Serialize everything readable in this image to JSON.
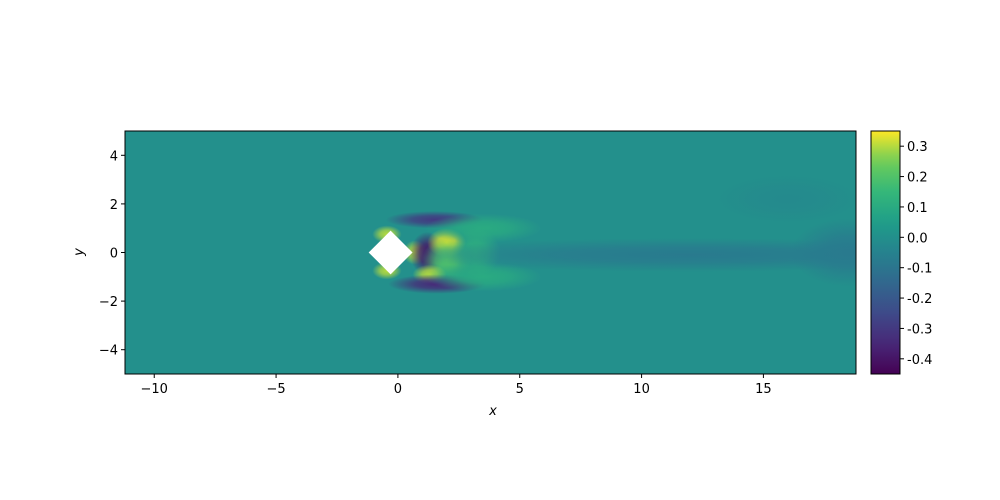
{
  "chart_data": {
    "type": "heatmap",
    "title": "",
    "xlabel": "x",
    "ylabel": "y",
    "xlim": [
      -11.2,
      18.8
    ],
    "ylim": [
      -5,
      5
    ],
    "x_ticks": [
      -10,
      -5,
      0,
      5,
      10,
      15
    ],
    "x_tick_labels": [
      "−10",
      "−5",
      "0",
      "5",
      "10",
      "15"
    ],
    "y_ticks": [
      -4,
      -2,
      0,
      2,
      4
    ],
    "y_tick_labels": [
      "−4",
      "−2",
      "0",
      "2",
      "4"
    ],
    "colormap": "viridis",
    "colorbar": {
      "vmin": -0.45,
      "vmax": 0.35,
      "ticks": [
        0.3,
        0.2,
        0.1,
        0.0,
        -0.1,
        -0.2,
        -0.3,
        -0.4
      ],
      "tick_labels": [
        "0.3",
        "0.2",
        "0.1",
        "0.0",
        "-0.1",
        "-0.2",
        "-0.3",
        "-0.4"
      ],
      "placement": "right"
    },
    "background_value": 0.0,
    "obstacle": {
      "shape": "diamond",
      "center": [
        -0.3,
        0
      ],
      "half_diagonal": 0.9
    },
    "features": [
      {
        "cx": -0.45,
        "cy": 0.75,
        "sx": 0.3,
        "sy": 0.18,
        "value": 0.3
      },
      {
        "cx": -0.45,
        "cy": -0.75,
        "sx": 0.3,
        "sy": 0.18,
        "value": 0.3
      },
      {
        "cx": 0.7,
        "cy": 0.0,
        "sx": 0.25,
        "sy": 0.25,
        "value": 0.3
      },
      {
        "cx": 1.2,
        "cy": -0.05,
        "sx": 0.35,
        "sy": 0.45,
        "value": -0.4
      },
      {
        "cx": 2.0,
        "cy": 0.4,
        "sx": 0.4,
        "sy": 0.3,
        "value": 0.33
      },
      {
        "cx": 2.0,
        "cy": -0.3,
        "sx": 0.5,
        "sy": 0.45,
        "value": 0.2
      },
      {
        "cx": 1.3,
        "cy": -0.9,
        "sx": 0.35,
        "sy": 0.2,
        "value": 0.3
      },
      {
        "cx": 1.5,
        "cy": 1.35,
        "sx": 1.0,
        "sy": 0.18,
        "value": -0.3
      },
      {
        "cx": 1.6,
        "cy": -1.3,
        "sx": 1.0,
        "sy": 0.2,
        "value": -0.35
      },
      {
        "cx": 3.5,
        "cy": 1.0,
        "sx": 1.2,
        "sy": 0.3,
        "value": 0.1
      },
      {
        "cx": 3.5,
        "cy": -1.0,
        "sx": 1.2,
        "sy": 0.3,
        "value": 0.1
      },
      {
        "cx": 3.2,
        "cy": 0.0,
        "sx": 0.5,
        "sy": 0.5,
        "value": 0.12
      },
      {
        "cx": 12.0,
        "cy": -0.1,
        "sx": 6.0,
        "sy": 0.35,
        "value": -0.08
      },
      {
        "cx": 18.5,
        "cy": 0.0,
        "sx": 1.2,
        "sy": 0.7,
        "value": -0.08
      },
      {
        "cx": 16.0,
        "cy": 2.2,
        "sx": 1.5,
        "sy": 0.5,
        "value": -0.02
      }
    ]
  }
}
